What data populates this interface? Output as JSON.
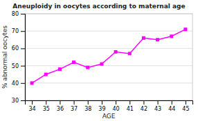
{
  "chart_data": {
    "type": "line",
    "title": "Aneuploidy in oocytes according to maternal age",
    "xlabel": "AGE",
    "ylabel": "% abnormal oocytes",
    "x": [
      34,
      35,
      36,
      37,
      38,
      39,
      40,
      41,
      42,
      43,
      44,
      45
    ],
    "values": [
      40,
      45,
      48,
      52,
      49,
      51,
      58,
      57,
      66,
      65,
      67,
      71
    ],
    "xlim": [
      33.5,
      45.5
    ],
    "ylim": [
      30,
      80
    ],
    "xticks": [
      34,
      35,
      36,
      37,
      38,
      39,
      40,
      41,
      42,
      43,
      44,
      45
    ],
    "yticks": [
      30,
      40,
      50,
      60,
      70,
      80
    ],
    "color": "#ff00ff",
    "marker": "square",
    "grid": "y"
  }
}
